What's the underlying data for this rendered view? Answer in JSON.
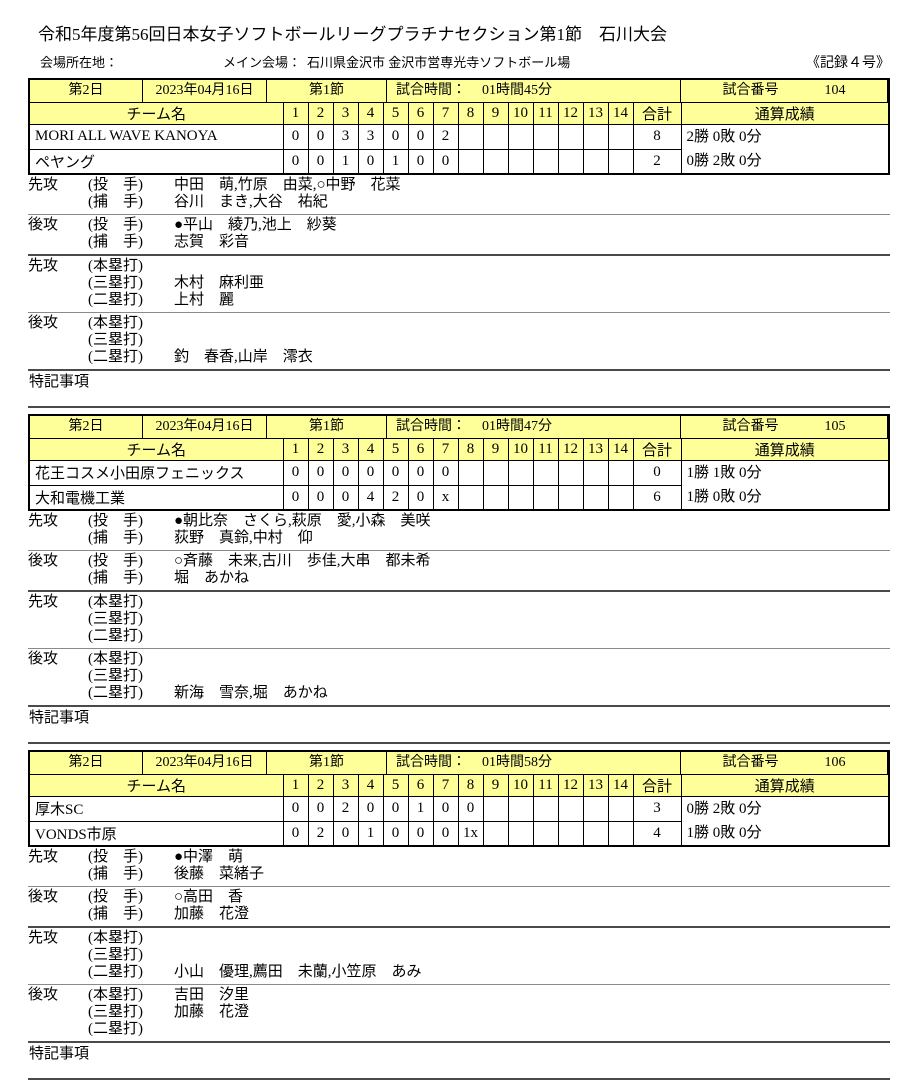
{
  "page": {
    "title": "令和5年度第56回日本女子ソフトボールリーグプラチナセクション第1節　石川大会",
    "venue_label": "会場所在地：",
    "main_venue_label": "メイン会場：",
    "main_venue_value": "石川県金沢市 金沢市営専光寺ソフトボール場",
    "record_sheet_no": "《記録４号》"
  },
  "labels": {
    "team_name_header": "チーム名",
    "inning_headers": [
      "1",
      "2",
      "3",
      "4",
      "5",
      "6",
      "7",
      "8",
      "9",
      "10",
      "11",
      "12",
      "13",
      "14"
    ],
    "total_header": "合計",
    "overall_record_header": "通算成績",
    "time_label": "試合時間：",
    "game_no_label": "試合番号",
    "first_attack": "先攻",
    "second_attack": "後攻",
    "pitcher": "(投　手)",
    "catcher": "(捕　手)",
    "home_run": "(本塁打)",
    "triple": "(三塁打)",
    "double": "(二塁打)",
    "notes": "特記事項"
  },
  "colors": {
    "header_bg": "#ffff99",
    "border": "#000000"
  },
  "games": [
    {
      "day": "第2日",
      "date": "2023年04月16日",
      "section": "第1節",
      "time": "01時間45分",
      "game_no": "104",
      "teams": [
        {
          "name": "MORI ALL WAVE KANOYA",
          "innings": [
            "0",
            "0",
            "3",
            "3",
            "0",
            "0",
            "2",
            "",
            "",
            "",
            "",
            "",
            "",
            ""
          ],
          "total": "8",
          "record": "2勝 0敗 0分"
        },
        {
          "name": "ペヤング",
          "innings": [
            "0",
            "0",
            "1",
            "0",
            "1",
            "0",
            "0",
            "",
            "",
            "",
            "",
            "",
            "",
            ""
          ],
          "total": "2",
          "record": "0勝 2敗 0分"
        }
      ],
      "first": {
        "pitchers": "中田　萌,竹原　由菜,○中野　花菜",
        "catchers": "谷川　まき,大谷　祐紀",
        "home_runs": "",
        "triples": "木村　麻利亜",
        "doubles": "上村　麗"
      },
      "second": {
        "pitchers": "●平山　綾乃,池上　紗葵",
        "catchers": "志賀　彩音",
        "home_runs": "",
        "triples": "",
        "doubles": "釣　春香,山岸　澪衣"
      }
    },
    {
      "day": "第2日",
      "date": "2023年04月16日",
      "section": "第1節",
      "time": "01時間47分",
      "game_no": "105",
      "teams": [
        {
          "name": "花王コスメ小田原フェニックス",
          "innings": [
            "0",
            "0",
            "0",
            "0",
            "0",
            "0",
            "0",
            "",
            "",
            "",
            "",
            "",
            "",
            ""
          ],
          "total": "0",
          "record": "1勝 1敗 0分"
        },
        {
          "name": "大和電機工業",
          "innings": [
            "0",
            "0",
            "0",
            "4",
            "2",
            "0",
            "x",
            "",
            "",
            "",
            "",
            "",
            "",
            ""
          ],
          "total": "6",
          "record": "1勝 0敗 0分"
        }
      ],
      "first": {
        "pitchers": "●朝比奈　さくら,萩原　愛,小森　美咲",
        "catchers": "荻野　真鈴,中村　仰",
        "home_runs": "",
        "triples": "",
        "doubles": ""
      },
      "second": {
        "pitchers": "○斉藤　未来,古川　歩佳,大串　都未希",
        "catchers": "堀　あかね",
        "home_runs": "",
        "triples": "",
        "doubles": "新海　雪奈,堀　あかね"
      }
    },
    {
      "day": "第2日",
      "date": "2023年04月16日",
      "section": "第1節",
      "time": "01時間58分",
      "game_no": "106",
      "teams": [
        {
          "name": "厚木SC",
          "innings": [
            "0",
            "0",
            "2",
            "0",
            "0",
            "1",
            "0",
            "0",
            "",
            "",
            "",
            "",
            "",
            ""
          ],
          "total": "3",
          "record": "0勝 2敗 0分"
        },
        {
          "name": "VONDS市原",
          "innings": [
            "0",
            "2",
            "0",
            "1",
            "0",
            "0",
            "0",
            "1x",
            "",
            "",
            "",
            "",
            "",
            ""
          ],
          "total": "4",
          "record": "1勝 0敗 0分"
        }
      ],
      "first": {
        "pitchers": "●中澤　萌",
        "catchers": "後藤　菜緒子",
        "home_runs": "",
        "triples": "",
        "doubles": "小山　優理,薦田　未蘭,小笠原　あみ"
      },
      "second": {
        "pitchers": "○高田　香",
        "catchers": "加藤　花澄",
        "home_runs": "吉田　汐里",
        "triples": "加藤　花澄",
        "doubles": ""
      }
    }
  ]
}
